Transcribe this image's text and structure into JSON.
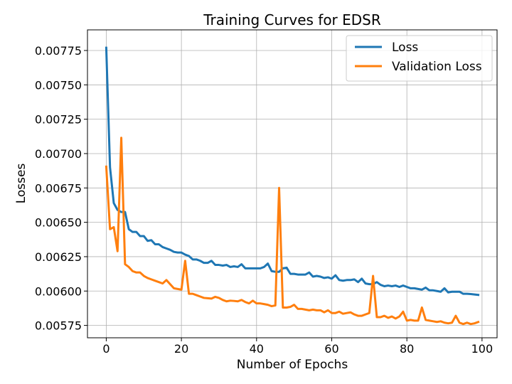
{
  "chart_data": {
    "type": "line",
    "title": "Training Curves for EDSR",
    "xlabel": "Number of Epochs",
    "ylabel": "Losses",
    "xlim": [
      -5,
      104
    ],
    "ylim": [
      0.00566,
      0.0079
    ],
    "xticks": [
      0,
      20,
      40,
      60,
      80,
      100
    ],
    "yticks": [
      0.00575,
      0.006,
      0.00625,
      0.0065,
      0.00675,
      0.007,
      0.00725,
      0.0075,
      0.00775
    ],
    "ytick_labels": [
      "0.00575",
      "0.00600",
      "0.00625",
      "0.00650",
      "0.00675",
      "0.00700",
      "0.00725",
      "0.00750",
      "0.00775"
    ],
    "grid": true,
    "legend_position": "top-right",
    "series": [
      {
        "name": "Loss",
        "color": "#1f77b4",
        "values": [
          0.00777,
          0.0069,
          0.00664,
          0.00659,
          0.006575,
          0.006575,
          0.00645,
          0.00643,
          0.00643,
          0.0064,
          0.0064,
          0.006365,
          0.00637,
          0.00634,
          0.00634,
          0.00632,
          0.00631,
          0.0063,
          0.006285,
          0.00628,
          0.00628,
          0.006265,
          0.006255,
          0.00623,
          0.00623,
          0.00622,
          0.006205,
          0.006205,
          0.00622,
          0.00619,
          0.00619,
          0.006185,
          0.00619,
          0.006175,
          0.00618,
          0.006175,
          0.006195,
          0.006165,
          0.006165,
          0.006165,
          0.006165,
          0.006165,
          0.006175,
          0.0062,
          0.006145,
          0.00614,
          0.00614,
          0.006165,
          0.00617,
          0.006125,
          0.006125,
          0.00612,
          0.00612,
          0.00612,
          0.006135,
          0.006105,
          0.00611,
          0.006105,
          0.006095,
          0.0061,
          0.00609,
          0.006115,
          0.00608,
          0.006075,
          0.00608,
          0.00608,
          0.006085,
          0.006065,
          0.00609,
          0.006055,
          0.00605,
          0.00605,
          0.006065,
          0.006045,
          0.006035,
          0.00604,
          0.006035,
          0.00604,
          0.00603,
          0.00604,
          0.00603,
          0.00602,
          0.00602,
          0.006015,
          0.00601,
          0.006025,
          0.006005,
          0.006005,
          0.006,
          0.005995,
          0.00602,
          0.00599,
          0.005995,
          0.005995,
          0.005995,
          0.00598,
          0.00598,
          0.005978,
          0.005975,
          0.005972
        ]
      },
      {
        "name": "Validation Loss",
        "color": "#ff7f0e",
        "values": [
          0.006905,
          0.00645,
          0.006465,
          0.00629,
          0.007115,
          0.006195,
          0.006175,
          0.006145,
          0.006135,
          0.006135,
          0.00611,
          0.006095,
          0.006085,
          0.006075,
          0.006065,
          0.006055,
          0.00608,
          0.00605,
          0.00602,
          0.006015,
          0.00601,
          0.00622,
          0.00598,
          0.00598,
          0.00597,
          0.00596,
          0.00595,
          0.005948,
          0.005945,
          0.005958,
          0.00595,
          0.005935,
          0.005925,
          0.00593,
          0.005928,
          0.005925,
          0.005935,
          0.00592,
          0.00591,
          0.00593,
          0.00591,
          0.00591,
          0.005905,
          0.0059,
          0.00589,
          0.005895,
          0.00675,
          0.00588,
          0.00588,
          0.005885,
          0.0059,
          0.00587,
          0.00587,
          0.005865,
          0.00586,
          0.005865,
          0.00586,
          0.00586,
          0.005845,
          0.00586,
          0.00584,
          0.00584,
          0.00585,
          0.005835,
          0.00584,
          0.005845,
          0.00583,
          0.00582,
          0.00582,
          0.00583,
          0.00584,
          0.00611,
          0.00581,
          0.00581,
          0.00582,
          0.005805,
          0.005815,
          0.0058,
          0.005815,
          0.00585,
          0.005785,
          0.00579,
          0.005785,
          0.005785,
          0.00588,
          0.00579,
          0.005785,
          0.00578,
          0.005775,
          0.00578,
          0.00577,
          0.005765,
          0.00577,
          0.00582,
          0.00577,
          0.00576,
          0.00577,
          0.00576,
          0.005765,
          0.005775
        ]
      }
    ]
  }
}
